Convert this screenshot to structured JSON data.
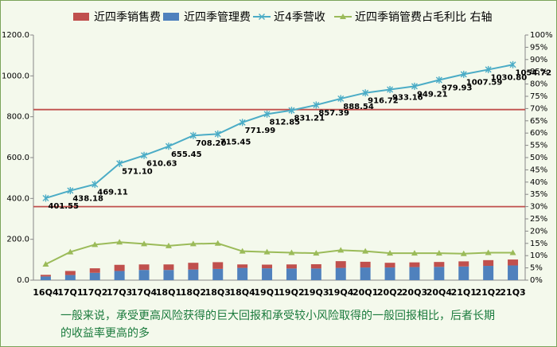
{
  "chart_data": {
    "type": "bar",
    "categories": [
      "16Q4",
      "17Q1",
      "17Q2",
      "17Q3",
      "17Q4",
      "18Q1",
      "18Q2",
      "18Q3",
      "18Q4",
      "19Q1",
      "19Q2",
      "19Q3",
      "19Q4",
      "20Q1",
      "20Q2",
      "20Q3",
      "20Q4",
      "21Q1",
      "21Q2",
      "21Q3"
    ],
    "series": [
      {
        "name": "近四季销售费",
        "kind": "bar-stack",
        "axis": "left",
        "color": "#c0504d",
        "values": [
          8,
          20,
          22,
          30,
          27,
          27,
          33,
          33,
          17,
          18,
          20,
          21,
          33,
          28,
          23,
          23,
          24,
          25,
          28,
          29
        ]
      },
      {
        "name": "近四季管理费",
        "kind": "bar-stack",
        "axis": "left",
        "color": "#4f81bd",
        "values": [
          18,
          25,
          36,
          45,
          50,
          50,
          52,
          55,
          60,
          58,
          57,
          57,
          60,
          62,
          62,
          64,
          65,
          67,
          70,
          72
        ]
      },
      {
        "name": "近4季营收",
        "kind": "line",
        "axis": "left",
        "color": "#4bacc6",
        "values": [
          401.55,
          438.18,
          469.11,
          571.1,
          610.63,
          655.45,
          708.2,
          715.45,
          771.99,
          812.85,
          831.21,
          857.39,
          888.54,
          916.72,
          933.16,
          949.21,
          979.93,
          1007.59,
          1030.8,
          1054.72
        ],
        "labels": [
          "401.55",
          "438.18",
          "469.11",
          "571.10",
          "610.63",
          "655.45",
          "708.20",
          "715.45",
          "771.99",
          "812.85",
          "831.21",
          "857.39",
          "888.54",
          "916.72",
          "933.16",
          "949.21",
          "979.93",
          "1007.59",
          "1030.80",
          "1054.72"
        ]
      },
      {
        "name": "近四季销管费占毛利比 右轴",
        "kind": "line",
        "axis": "right",
        "color": "#9bbb59",
        "values": [
          6.5,
          11.5,
          14.5,
          15.5,
          14.8,
          14.0,
          14.8,
          15.0,
          11.8,
          11.5,
          11.2,
          11.0,
          12.2,
          11.8,
          11.0,
          11.0,
          11.0,
          10.8,
          11.2,
          11.2
        ]
      }
    ],
    "reference_lines_left": [
      835,
      360
    ],
    "reference_line_color": "#c0504d",
    "left_axis": {
      "ylim": [
        0,
        1200
      ],
      "ticks": [
        "0.0",
        "200.0",
        "400.0",
        "600.0",
        "800.0",
        "1000.0",
        "1200.0"
      ]
    },
    "right_axis": {
      "ylim": [
        0,
        100
      ],
      "ticks": [
        "0%",
        "5%",
        "10%",
        "15%",
        "20%",
        "25%",
        "30%",
        "35%",
        "40%",
        "45%",
        "50%",
        "55%",
        "60%",
        "65%",
        "70%",
        "75%",
        "80%",
        "85%",
        "90%",
        "95%",
        "100%"
      ]
    },
    "legend": {
      "placement": "top",
      "entries": [
        "近四季销售费",
        "近四季管理费",
        "近4季营收",
        "近四季销管费占毛利比 右轴"
      ]
    },
    "grid": false
  },
  "caption": {
    "line1": "一般来说，承受更高风险获得的巨大回报和承受较小风险取得的一般回报相比，后者长期",
    "line2": "的收益率更高的多"
  }
}
